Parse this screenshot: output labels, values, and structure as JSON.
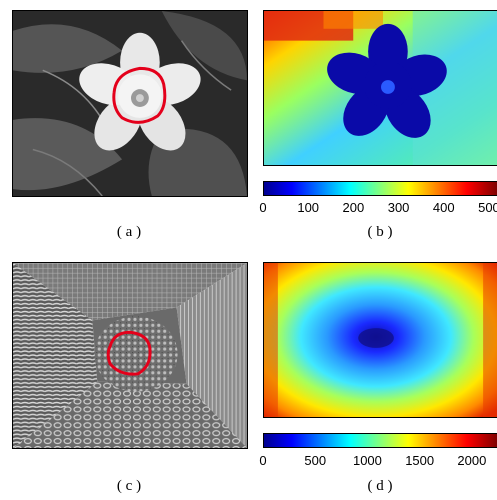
{
  "panels": {
    "a": {
      "caption": "( a )"
    },
    "b": {
      "caption": "( b )"
    },
    "c": {
      "caption": "( c )"
    },
    "d": {
      "caption": "( d )"
    }
  },
  "colorbar_b": {
    "ticks": [
      "0",
      "100",
      "200",
      "300",
      "400",
      "500"
    ],
    "range": [
      0,
      520
    ]
  },
  "colorbar_d": {
    "ticks": [
      "0",
      "500",
      "1000",
      "1500",
      "2000"
    ],
    "range": [
      0,
      2250
    ]
  },
  "colors": {
    "contour": "#e4001b",
    "jet_low": "#00008f",
    "jet_high": "#800000"
  }
}
